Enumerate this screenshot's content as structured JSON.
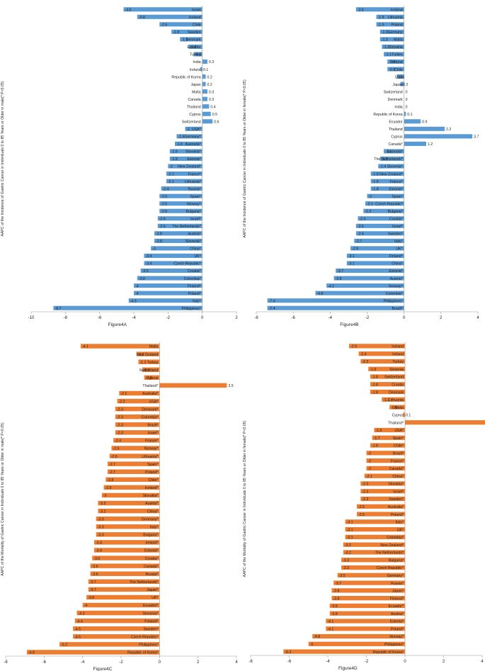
{
  "colors": {
    "blue": "#5b9bd5",
    "orange": "#ed7d31",
    "axis": "#9a9a9a"
  },
  "chart_data": [
    {
      "type": "bar",
      "orientation": "horizontal",
      "title": "",
      "xlabel": "Figure4A",
      "ylabel": "AAPC of the Incidence of Gastric Cancer in Individuals 0 to 85 Years or Older in male(*    P<0.05)",
      "xlim": [
        -10,
        2
      ],
      "xticks": [
        -10,
        -8,
        -6,
        -4,
        -2,
        0,
        2
      ],
      "color": "blue",
      "categories": [
        "Israel",
        "Iceland",
        "Chile",
        "Sweden",
        "Denmark",
        "Ecuador",
        "Turkey",
        "India",
        "Ireland",
        "Republic of Korea",
        "Japan",
        "Malta",
        "Canada",
        "Thailand",
        "Cyprus",
        "Switzerland",
        "USA*",
        "Germany*",
        "Australia*",
        "Slovakia*",
        "Estonia*",
        "New Zealand*",
        "France*",
        "Lithuania*",
        "Russia*",
        "Spain*",
        "Norway*",
        "Bulgaria*",
        "Israel*",
        "The Netherlands*",
        "Austria*",
        "Slovenia*",
        "China*",
        "UK*",
        "Czech Republic*",
        "Croatia*",
        "Colombia*",
        "Finland*",
        "Poland*",
        "Italy*",
        "Philippines*"
      ],
      "values": [
        -4.6,
        -3.8,
        -2.5,
        -1.8,
        -1.3,
        -0.8,
        -0.5,
        0.3,
        -0.1,
        0.2,
        0.2,
        0.3,
        0.3,
        0.4,
        0.5,
        0.6,
        -1,
        -1.5,
        -1.6,
        -1.9,
        -1.9,
        -2,
        -2.1,
        -2.1,
        -2.4,
        -2.5,
        -2.5,
        -2.5,
        -2.6,
        -2.6,
        -2.8,
        -2.8,
        -3,
        -3.4,
        -3.4,
        -3.6,
        -3.8,
        -4,
        -4,
        -4.3,
        -8.7
      ]
    },
    {
      "type": "bar",
      "orientation": "horizontal",
      "title": "",
      "xlabel": "Figure4B",
      "ylabel": "AAPC of the Incidence of Gastric Cancer in Individuals 0 to 85 Years or Older in female(*    P<0.05)",
      "xlim": [
        -8,
        4
      ],
      "xticks": [
        -8,
        -6,
        -4,
        -2,
        0,
        2,
        4
      ],
      "color": "blue",
      "categories": [
        "Iceland",
        "Lithuania",
        "Poland",
        "Germany",
        "Malta",
        "Slovakia",
        "Turkey",
        "Ireland",
        "Chile",
        "USA",
        "Japan",
        "Switzerland",
        "Denmark",
        "India",
        "Republic of Korea",
        "Ecuador",
        "Thailand",
        "Cyprus",
        "Canada*",
        "Australia*",
        "The Netherlands*",
        "Slovenia*",
        "New Zealand*",
        "France*",
        "Estonia*",
        "Spain*",
        "Czech Republic*",
        "Bulgaria*",
        "Croatia*",
        "Israel*",
        "Sweden*",
        "Italy*",
        "UK*",
        "Finland*",
        "China*",
        "Estonia*",
        "Austria*",
        "Norway*",
        "Colombia*",
        "Philippines*",
        "Brazil*"
      ],
      "values": [
        -2.6,
        -1.5,
        -1.5,
        -1.3,
        -1.3,
        -1.2,
        -1.1,
        -0.9,
        -0.9,
        -0.4,
        -0.2,
        0,
        0,
        0,
        0.1,
        0.9,
        2.2,
        3.7,
        1.2,
        -1.1,
        -1.3,
        -1.4,
        -1.8,
        -1.8,
        -1.8,
        -2,
        -2.1,
        -2.2,
        -2.5,
        -2.6,
        -2.6,
        -2.7,
        -2.9,
        -3.1,
        -3.1,
        -3.7,
        -3.8,
        -4.2,
        -4.8,
        -7.4,
        -7.4
      ]
    },
    {
      "type": "bar",
      "orientation": "horizontal",
      "title": "",
      "xlabel": "Figure4C",
      "ylabel": "AAPC of the Mortality of Gastric Cancer in Individuals 0 to 85 Years or Older in male(*    P<0.05)",
      "xlim": [
        -8,
        4
      ],
      "xticks": [
        -8,
        -6,
        -4,
        -2,
        0,
        2,
        4
      ],
      "color": "orange",
      "categories": [
        "Malta",
        "New Zealand",
        "Turkey",
        "Switzerland",
        "Cyprus",
        "Thailand*",
        "Australia*",
        "USA*",
        "Denmark*",
        "Colombia*",
        "Brazil*",
        "Israel*",
        "France*",
        "Norway*",
        "Lithuania*",
        "Spain*",
        "Poland*",
        "Chile*",
        "Iceland*",
        "Slovakia*",
        "Austria*",
        "China*",
        "Germany*",
        "Italy*",
        "Bulgaria*",
        "Ireland*",
        "Estonia*",
        "Croatia*",
        "Canada*",
        "Russia*",
        "The Netherlands*",
        "Japan*",
        "UK*",
        "Ecuador*",
        "Slovenia*",
        "Finland*",
        "Sweden*",
        "Czech Republic*",
        "Philippines*",
        "Republic of Korea*"
      ],
      "values": [
        -4.1,
        -1.2,
        -1.1,
        -0.9,
        -0.8,
        3.5,
        -2.1,
        -2.2,
        -2.3,
        -2.3,
        -2.3,
        -2.3,
        -2.4,
        -2.5,
        -2.6,
        -2.7,
        -2.7,
        -2.8,
        -2.9,
        -3,
        -3.2,
        -3.2,
        -3.3,
        -3.3,
        -3.3,
        -3.4,
        -3.4,
        -3.5,
        -3.6,
        -3.6,
        -3.7,
        -3.7,
        -3.8,
        -4,
        -4.3,
        -4.4,
        -4.5,
        -4.5,
        -5.2,
        -6.9
      ]
    },
    {
      "type": "bar",
      "orientation": "horizontal",
      "title": "",
      "xlabel": "Figure4D",
      "ylabel": "AAPC of the Mortality of Gastric Cancer in Individuals 0 to 85 Years or Older in female(*    P<0.05)",
      "xlim": [
        -8,
        4
      ],
      "xticks": [
        -8,
        -6,
        -4,
        -2,
        0,
        2,
        4
      ],
      "color": "orange",
      "categories": [
        "Iceland",
        "Ireland",
        "Turkey",
        "Slovenia",
        "Switzerland",
        "Croatia",
        "Denmark",
        "Lithuania",
        "Malta",
        "Cyprus",
        "Thailand*",
        "USA*",
        "Spain*",
        "Chile*",
        "Brazil*",
        "France*",
        "Canada*",
        "China*",
        "Slovakia*",
        "Israel*",
        "Sweden*",
        "Australia*",
        "Poland*",
        "Italy*",
        "UK*",
        "Colombia*",
        "New Zealand*",
        "The Netherlands*",
        "Bulgaria*",
        "Czech Republic*",
        "Germany*",
        "Russia*",
        "Japan*",
        "Finland*",
        "Ecuador*",
        "Austria*",
        "Estonia*",
        "Poland*",
        "Norway*",
        "Philippines*",
        "Republic of Korea*"
      ],
      "values": [
        -2.9,
        -2.4,
        -2.3,
        -1.9,
        -1.8,
        -1.8,
        -1.8,
        -1.2,
        -0.8,
        -0.1,
        4.2,
        -1.6,
        -1.7,
        -1.8,
        -2,
        -2,
        -2,
        -2.1,
        -2.3,
        -2.3,
        -2.3,
        -2.5,
        -2.5,
        -3.1,
        -3.1,
        -3.1,
        -3.2,
        -3.2,
        -3.3,
        -3.3,
        -3.5,
        -3.7,
        -3.8,
        -3.8,
        -3.9,
        -3.9,
        -4.1,
        -4.1,
        -4.8,
        -5,
        -6.3
      ]
    }
  ]
}
